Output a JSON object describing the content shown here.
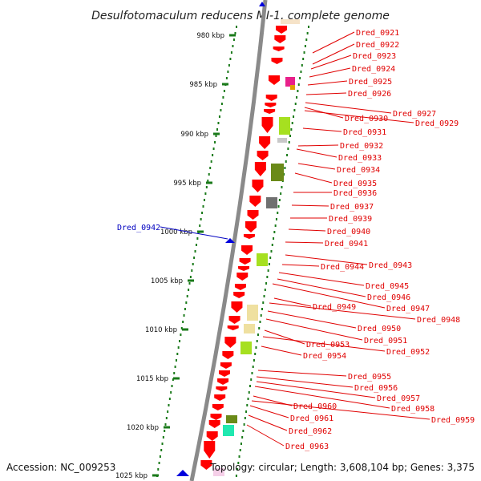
{
  "title": "Desulfotomaculum reducens MI-1, complete genome",
  "accession": "Accession: NC_009253",
  "topology": "Topology: circular; Length: 3,608,104 bp; Genes: 3,375",
  "ticks": [
    "980 kbp",
    "985 kbp",
    "990 kbp",
    "995 kbp",
    "1000 kbp",
    "1005 kbp",
    "1010 kbp",
    "1015 kbp",
    "1020 kbp",
    "1025 kbp"
  ],
  "genes_right": [
    "Dred_0921",
    "Dred_0922",
    "Dred_0923",
    "Dred_0924",
    "Dred_0925",
    "Dred_0926",
    "Dred_0927",
    "Dred_0930",
    "Dred_0929",
    "Dred_0931",
    "Dred_0932",
    "Dred_0933",
    "Dred_0934",
    "Dred_0935",
    "Dred_0936",
    "Dred_0937",
    "Dred_0939",
    "Dred_0940",
    "Dred_0941",
    "Dred_0944",
    "Dred_0943",
    "Dred_0945",
    "Dred_0946",
    "Dred_0947",
    "Dred_0949",
    "Dred_0948",
    "Dred_0950",
    "Dred_0951",
    "Dred_0953",
    "Dred_0952",
    "Dred_0954",
    "Dred_0955",
    "Dred_0956",
    "Dred_0957",
    "Dred_0958",
    "Dred_0960",
    "Dred_0959",
    "Dred_0961",
    "Dred_0962",
    "Dred_0963"
  ],
  "gene_left": "Dred_0942",
  "colors": {
    "backbone": "#8a8a8a",
    "cds": "#ff0000",
    "tick": "#1a7a1a",
    "gene_label": "#e00000",
    "gene_label_blue": "#0000c0",
    "marker_blue": "#0000dd"
  }
}
